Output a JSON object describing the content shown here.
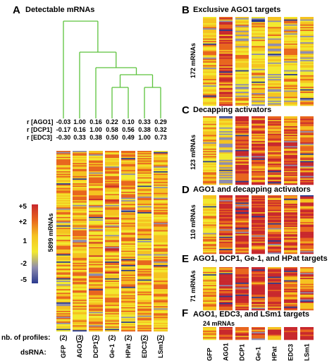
{
  "panel_a": {
    "letter": "A",
    "title": "Detectable mRNAs",
    "mrna_label": "5899 mRNAs",
    "row_count": 5899,
    "columns": [
      "GFP",
      "AGO1",
      "DCP1",
      "Ge-1",
      "HPat",
      "EDC3",
      "LSm1"
    ],
    "profiles_label": "nb. of profiles:",
    "profiles": [
      "(2)",
      "(3)",
      "(2)",
      "(2)",
      "(2)",
      "(2)",
      "(2)"
    ],
    "dsrna_label": "dsRNA:",
    "correlations": [
      {
        "label": "r [AGO1]",
        "values": [
          "-0.03",
          "1.00",
          "0.16",
          "0.22",
          "0.10",
          "0.33",
          "0.29"
        ]
      },
      {
        "label": "r [DCP1]",
        "values": [
          "-0.17",
          "0.16",
          "1.00",
          "0.58",
          "0.56",
          "0.38",
          "0.32"
        ]
      },
      {
        "label": "r [EDC3]",
        "values": [
          "-0.30",
          "0.33",
          "0.38",
          "0.50",
          "0.49",
          "1.00",
          "0.73"
        ]
      }
    ],
    "dendrogram_color": "#5cc23c"
  },
  "color_scale": {
    "ticks": [
      "+5",
      "+2",
      "1",
      "-2",
      "-5"
    ],
    "stops": [
      "#c8282d",
      "#e8661e",
      "#f5c320",
      "#f2e92f",
      "#8e8cae",
      "#2b3a8f"
    ]
  },
  "panels": [
    {
      "letter": "B",
      "title": "Exclusive AGO1 targets",
      "mrna_label": "172 mRNAs",
      "count": 172
    },
    {
      "letter": "C",
      "title": "Decapping activators",
      "mrna_label": "123 mRNAs",
      "count": 123
    },
    {
      "letter": "D",
      "title": "AGO1 and decapping activators",
      "mrna_label": "110 mRNAs",
      "count": 110
    },
    {
      "letter": "E",
      "title": "AGO1, DCP1, Ge-1, and HPat targets",
      "mrna_label": "71 mRNAs",
      "count": 71
    },
    {
      "letter": "F",
      "title": "AGO1, EDC3, and LSm1 targets",
      "mrna_label": "24 mRNAs",
      "count": 24
    }
  ],
  "panel_columns": [
    "GFP",
    "AGO1",
    "DCP1",
    "Ge-1",
    "HPat",
    "EDC3",
    "LSm1"
  ],
  "chart_data": [
    {
      "type": "heatmap",
      "title": "Detectable mRNAs",
      "rows": 5899,
      "columns": [
        "GFP",
        "AGO1",
        "DCP1",
        "Ge-1",
        "HPat",
        "EDC3",
        "LSm1"
      ],
      "scale": [
        "+5",
        "+2",
        "1",
        "-2",
        "-5"
      ],
      "clustering_order": [
        "GFP",
        "AGO1",
        "DCP1",
        "Ge-1",
        "HPat",
        "EDC3",
        "LSm1"
      ]
    },
    {
      "type": "heatmap",
      "title": "Exclusive AGO1 targets",
      "rows": 172,
      "columns": [
        "GFP",
        "AGO1",
        "DCP1",
        "Ge-1",
        "HPat",
        "EDC3",
        "LSm1"
      ]
    },
    {
      "type": "heatmap",
      "title": "Decapping activators",
      "rows": 123,
      "columns": [
        "GFP",
        "AGO1",
        "DCP1",
        "Ge-1",
        "HPat",
        "EDC3",
        "LSm1"
      ]
    },
    {
      "type": "heatmap",
      "title": "AGO1 and decapping activators",
      "rows": 110,
      "columns": [
        "GFP",
        "AGO1",
        "DCP1",
        "Ge-1",
        "HPat",
        "EDC3",
        "LSm1"
      ]
    },
    {
      "type": "heatmap",
      "title": "AGO1, DCP1, Ge-1, and HPat targets",
      "rows": 71,
      "columns": [
        "GFP",
        "AGO1",
        "DCP1",
        "Ge-1",
        "HPat",
        "EDC3",
        "LSm1"
      ]
    },
    {
      "type": "heatmap",
      "title": "AGO1, EDC3, and LSm1 targets",
      "rows": 24,
      "columns": [
        "GFP",
        "AGO1",
        "DCP1",
        "Ge-1",
        "HPat",
        "EDC3",
        "LSm1"
      ]
    }
  ]
}
